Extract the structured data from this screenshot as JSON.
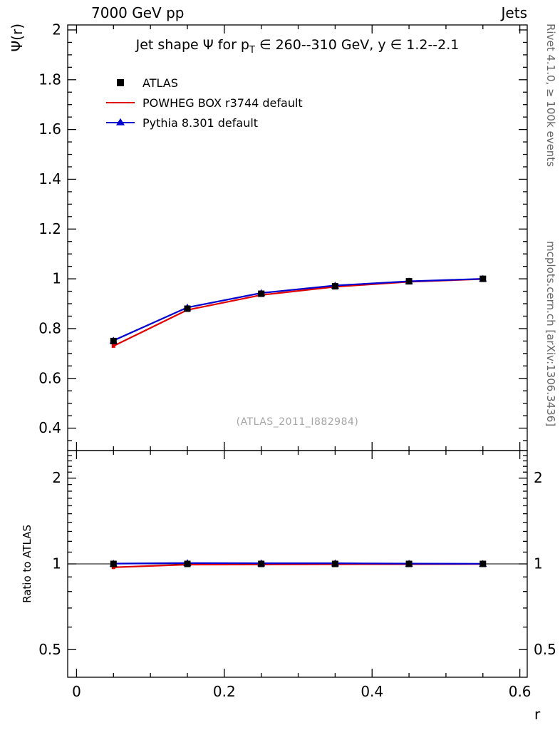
{
  "header": {
    "left": "7000 GeV pp",
    "right": "Jets"
  },
  "title": {
    "pre": "Jet shape Ψ for p",
    "sub": "T",
    "post": " ∈ 260--310 GeV, y ∈ 1.2--2.1"
  },
  "watermark": "(ATLAS_2011_I882984)",
  "side_notes": {
    "top_right": "Rivet 4.1.0, ≥ 100k events",
    "bottom_right": "mcplots.cern.ch [arXiv:1306.3436]"
  },
  "legend": [
    {
      "label": "ATLAS",
      "marker": "black-square",
      "color": "#000000"
    },
    {
      "label": "POWHEG BOX r3744 default",
      "marker": "red-line",
      "color": "#e10000"
    },
    {
      "label": "Pythia 8.301 default",
      "marker": "blue-line-triangle",
      "color": "#0000d0"
    }
  ],
  "chart_data": {
    "type": "line",
    "xlabel": "r",
    "x": [
      0.05,
      0.15,
      0.25,
      0.35,
      0.45,
      0.55
    ],
    "xlim": [
      -0.012,
      0.61
    ],
    "xticks": [
      0,
      0.2,
      0.4,
      0.6
    ],
    "grid": false,
    "legend_position": "upper-left",
    "top_panel": {
      "ylabel": "Ψ(r)",
      "scale": "linear",
      "ylim": [
        0.31,
        2.02
      ],
      "yticks": [
        0.4,
        0.6,
        0.8,
        1,
        1.2,
        1.4,
        1.6,
        1.8,
        2
      ],
      "series": [
        {
          "name": "ATLAS",
          "type": "marker",
          "marker": "square",
          "color": "#000000",
          "values": [
            0.75,
            0.88,
            0.94,
            0.97,
            0.99,
            1.0
          ],
          "errors": [
            0.012,
            0.008,
            0.006,
            0.005,
            0.004,
            0.003
          ]
        },
        {
          "name": "POWHEG BOX r3744 default",
          "type": "line",
          "color": "#e10000",
          "values": [
            0.73,
            0.875,
            0.935,
            0.968,
            0.988,
            0.999
          ]
        },
        {
          "name": "Pythia 8.301 default",
          "type": "line-triangle",
          "color": "#0000d0",
          "values": [
            0.752,
            0.885,
            0.943,
            0.973,
            0.99,
            1.0
          ]
        }
      ]
    },
    "ratio_panel": {
      "ylabel": "Ratio to ATLAS",
      "scale": "log",
      "ylim": [
        0.4,
        2.5
      ],
      "yticks": [
        0.5,
        1,
        2
      ],
      "reference_line": 1,
      "series": [
        {
          "name": "ATLAS",
          "type": "marker",
          "marker": "square",
          "color": "#000000",
          "values": [
            1,
            1,
            1,
            1,
            1,
            1
          ]
        },
        {
          "name": "POWHEG BOX r3744 default",
          "type": "line",
          "color": "#e10000",
          "values": [
            0.973,
            0.994,
            0.995,
            0.997,
            0.998,
            0.999
          ]
        },
        {
          "name": "Pythia 8.301 default",
          "type": "line-triangle",
          "color": "#0000d0",
          "values": [
            1.002,
            1.007,
            1.005,
            1.005,
            1.002,
            1.001
          ]
        }
      ]
    }
  }
}
